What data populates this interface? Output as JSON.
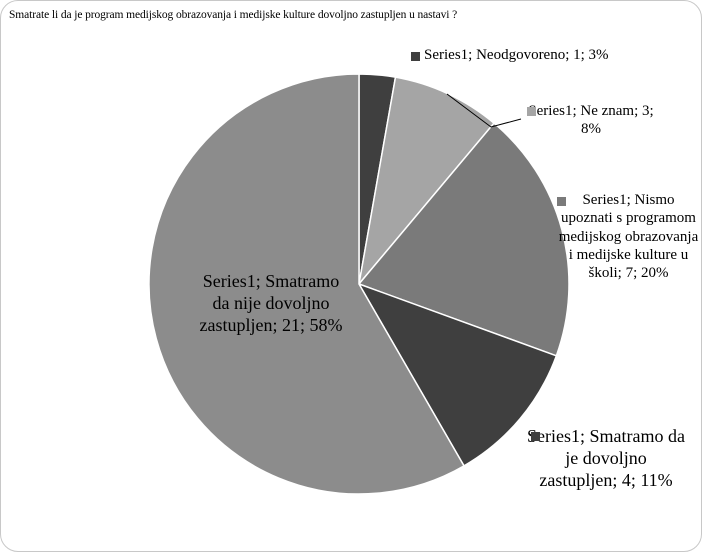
{
  "chart_data": {
    "type": "pie",
    "title": "Smatrate li da je program medijskog obrazovanja i medijske kulture dovoljno zastupljen u nastavi ?",
    "categories": [
      "Neodgovoreno",
      "Ne znam",
      "Nismo upoznati s programom medijskog obrazovanja i medijske kulture u školi",
      "Smatramo da je dovoljno zastupljen",
      "Smatramo da nije dovoljno zastupljen"
    ],
    "values": [
      1,
      3,
      7,
      4,
      21
    ],
    "value_labels": [
      "Series1; Neodgovoreno; 1; 3%",
      "Series1; Ne znam; 3; 8%",
      "Series1; Nismo upoznati s programom medijskog obrazovanja i medijske kulture u školi; 7; 20%",
      "Series1; Smatramo da je dovoljno zastupljen; 4; 11%",
      "Series1; Smatramo da nije dovoljno zastupljen; 21; 58%"
    ],
    "colors": [
      "#3f3f3f",
      "#a5a5a5",
      "#7a7a7a",
      "#3f3f3f",
      "#8c8c8c"
    ]
  }
}
